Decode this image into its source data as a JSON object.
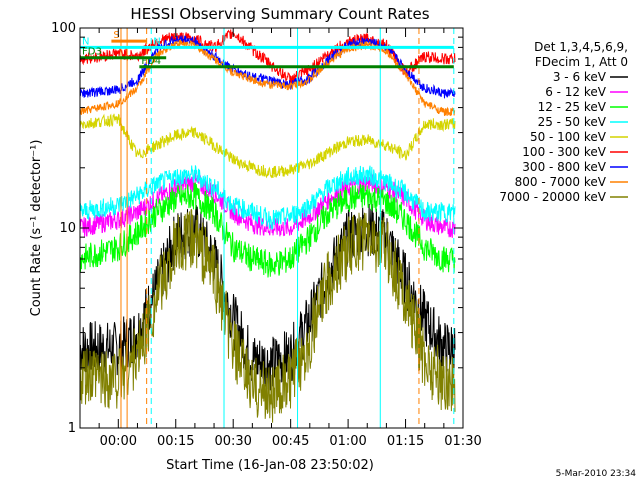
{
  "chart_data": {
    "type": "line",
    "title": "HESSI Observing Summary Count Rates",
    "xlabel": "Start Time (16-Jan-08 23:50:02)",
    "ylabel": "Count Rate (s⁻¹ detector⁻¹)",
    "yscale": "log",
    "ylim": [
      1,
      100
    ],
    "xlim_minutes": [
      -10,
      90
    ],
    "x_ticks": [
      {
        "minutes": 0,
        "label": "00:00"
      },
      {
        "minutes": 15,
        "label": "00:15"
      },
      {
        "minutes": 30,
        "label": "00:30"
      },
      {
        "minutes": 45,
        "label": "00:45"
      },
      {
        "minutes": 60,
        "label": "01:00"
      },
      {
        "minutes": 75,
        "label": "01:15"
      },
      {
        "minutes": 90,
        "label": "01:30"
      }
    ],
    "y_ticks": [
      {
        "value": 1,
        "label": "1"
      },
      {
        "value": 10,
        "label": "10"
      },
      {
        "value": 100,
        "label": "100"
      }
    ],
    "legend": {
      "placement": "right",
      "header": [
        "Det 1,3,4,5,6,9,",
        "FDecim 1, Att 0"
      ]
    },
    "series": [
      {
        "name": "3 - 6 keV",
        "color": "#000000",
        "x": [
          -10,
          -5,
          0,
          5,
          10,
          15,
          20,
          25,
          30,
          35,
          40,
          45,
          50,
          55,
          60,
          65,
          70,
          75,
          80,
          85,
          88
        ],
        "y": [
          2.5,
          2.5,
          2.5,
          3,
          5,
          9,
          10,
          7,
          3.5,
          2.2,
          2.1,
          2.3,
          3.5,
          6,
          9,
          10,
          9,
          5.5,
          3.5,
          2.5,
          2.5
        ]
      },
      {
        "name": "6 - 12 keV",
        "color": "#ff00ff",
        "x": [
          -10,
          -5,
          0,
          5,
          10,
          15,
          20,
          25,
          30,
          35,
          40,
          45,
          50,
          55,
          60,
          65,
          70,
          75,
          80,
          85,
          88
        ],
        "y": [
          10,
          10.5,
          11,
          12,
          14,
          16,
          17,
          15,
          12,
          10.5,
          10,
          10,
          11.5,
          14,
          16,
          17,
          16,
          14,
          11,
          10,
          10
        ]
      },
      {
        "name": "12 - 25 keV",
        "color": "#00ff00",
        "x": [
          -10,
          -5,
          0,
          5,
          10,
          15,
          20,
          25,
          30,
          35,
          40,
          45,
          50,
          55,
          60,
          65,
          70,
          75,
          80,
          85,
          88
        ],
        "y": [
          7,
          7.5,
          8,
          9.5,
          12,
          14,
          14.5,
          12,
          8,
          7,
          6.5,
          7,
          9,
          12,
          14,
          14.5,
          13.5,
          11,
          8,
          7,
          7
        ]
      },
      {
        "name": "25 - 50 keV",
        "color": "#00ffff",
        "x": [
          -10,
          -5,
          0,
          5,
          10,
          15,
          20,
          25,
          30,
          35,
          40,
          45,
          50,
          55,
          60,
          65,
          70,
          75,
          80,
          85,
          88
        ],
        "y": [
          12,
          12.5,
          13,
          14.5,
          16.5,
          18,
          18.5,
          16,
          13,
          12,
          11,
          11.5,
          13,
          16,
          18,
          18.5,
          17,
          15,
          12,
          12,
          12
        ]
      },
      {
        "name": "50 - 100 keV",
        "color": "#d4d400",
        "x": [
          -10,
          -5,
          0,
          5,
          10,
          15,
          20,
          25,
          30,
          35,
          40,
          45,
          50,
          55,
          60,
          65,
          70,
          75,
          80,
          85,
          88
        ],
        "y": [
          33,
          34,
          35,
          23,
          26,
          29,
          30,
          26,
          22,
          20,
          19,
          19.5,
          21,
          24,
          27,
          27.5,
          26,
          23,
          33,
          33,
          33
        ]
      },
      {
        "name": "100 - 300 keV",
        "color": "#ff0000",
        "x": [
          -10,
          -5,
          0,
          5,
          10,
          15,
          20,
          25,
          30,
          35,
          40,
          45,
          50,
          55,
          60,
          65,
          70,
          75,
          80,
          85,
          88
        ],
        "y": [
          70,
          72,
          75,
          72,
          86,
          90,
          88,
          80,
          95,
          78,
          65,
          55,
          62,
          75,
          85,
          88,
          82,
          60,
          72,
          70,
          70
        ]
      },
      {
        "name": "300 - 800 keV",
        "color": "#0000ff",
        "x": [
          -10,
          -5,
          0,
          5,
          10,
          15,
          20,
          25,
          30,
          35,
          40,
          45,
          50,
          55,
          60,
          65,
          70,
          75,
          80,
          85,
          88
        ],
        "y": [
          47,
          48,
          49,
          55,
          78,
          88,
          86,
          72,
          62,
          57,
          54,
          52,
          56,
          70,
          82,
          86,
          80,
          62,
          50,
          47,
          47
        ]
      },
      {
        "name": "800 - 7000 keV",
        "color": "#ff8000",
        "x": [
          -10,
          -5,
          0,
          5,
          10,
          15,
          20,
          25,
          30,
          35,
          40,
          45,
          50,
          55,
          60,
          65,
          70,
          75,
          80,
          85,
          88
        ],
        "y": [
          38,
          40,
          42,
          50,
          73,
          84,
          82,
          70,
          60,
          55,
          52,
          51,
          55,
          68,
          79,
          82,
          77,
          58,
          42,
          38,
          38
        ]
      },
      {
        "name": "7000 - 20000 keV",
        "color": "#808000",
        "x": [
          -10,
          -5,
          0,
          5,
          10,
          15,
          20,
          25,
          30,
          35,
          40,
          45,
          50,
          55,
          60,
          65,
          70,
          75,
          80,
          85,
          88
        ],
        "y": [
          1.7,
          1.8,
          1.8,
          2.3,
          4.5,
          8,
          9,
          6,
          2.5,
          1.6,
          1.5,
          1.7,
          2.8,
          5.5,
          8,
          9,
          8,
          4.5,
          2.2,
          1.7,
          1.7
        ]
      }
    ],
    "vertical_lines": [
      {
        "minutes": 0.7,
        "color": "#ff8000",
        "style": "solid"
      },
      {
        "minutes": 2.3,
        "color": "#ff8000",
        "style": "solid"
      },
      {
        "minutes": 7.4,
        "color": "#ff8000",
        "style": "dashed"
      },
      {
        "minutes": 8.6,
        "color": "#00ffff",
        "style": "dashed"
      },
      {
        "minutes": 27.6,
        "color": "#00ffff",
        "style": "solid"
      },
      {
        "minutes": 46.8,
        "color": "#00ffff",
        "style": "solid"
      },
      {
        "minutes": 68.4,
        "color": "#00ffff",
        "style": "solid"
      },
      {
        "minutes": 78.5,
        "color": "#ff8000",
        "style": "dashed"
      },
      {
        "minutes": 87.6,
        "color": "#00ffff",
        "style": "dashed"
      }
    ],
    "annotations": [
      {
        "label": "S",
        "color": "#ff8000",
        "start_minutes": -1.8,
        "end_minutes": 7.4,
        "level": 86
      },
      {
        "label": "N",
        "color": "#00ffff",
        "start_minutes": -10,
        "end_minutes": 8.6,
        "level": 80
      },
      {
        "label": "N",
        "color": "#00ffff",
        "start_minutes": 8.6,
        "end_minutes": 87.6,
        "level": 80
      },
      {
        "label": "FD3",
        "color": "#008000",
        "start_minutes": -10,
        "end_minutes": 12.5,
        "level": 71
      },
      {
        "label": "FD4",
        "color": "#008000",
        "start_minutes": 5.5,
        "end_minutes": 87.6,
        "level": 64
      }
    ],
    "grid": false
  },
  "footer": {
    "timestamp": "5-Mar-2010 23:34"
  }
}
